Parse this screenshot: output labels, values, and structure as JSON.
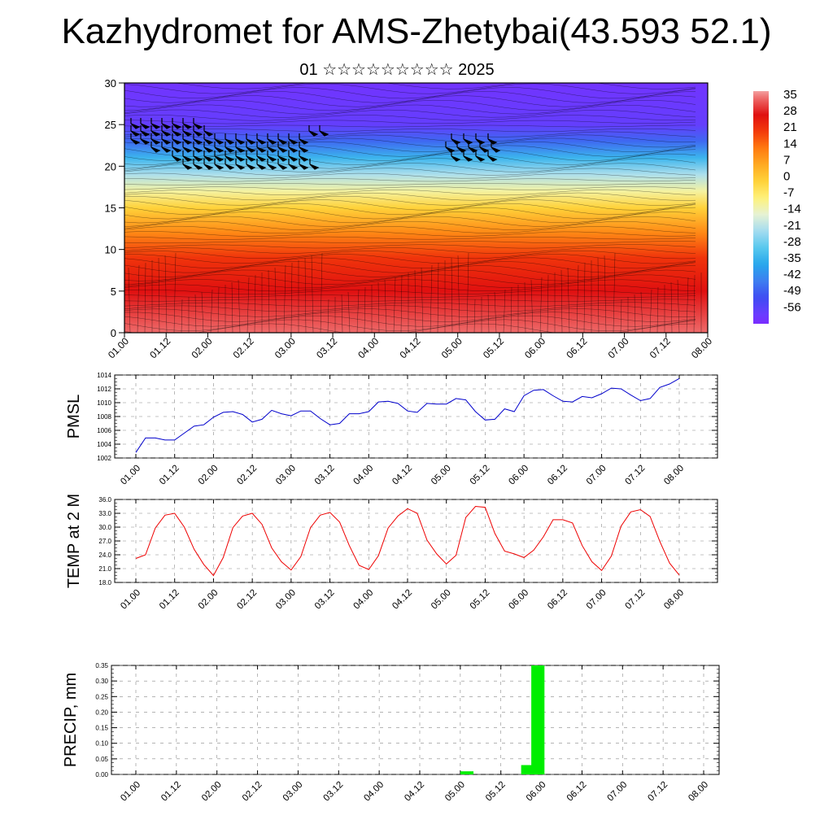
{
  "title": "Kazhydromet for AMS-Zhetybai(43.593 52.1)",
  "subtitle": "01 ☆☆☆☆☆☆☆☆☆ 2025",
  "time_ticks": [
    "01.00",
    "01.12",
    "02.00",
    "02.12",
    "03.00",
    "03.12",
    "04.00",
    "04.12",
    "05.00",
    "05.12",
    "06.00",
    "06.12",
    "07.00",
    "07.12",
    "08.00"
  ],
  "chart_data": [
    {
      "type": "heatmap",
      "description_type": "height-time cross section of temperature with wind barbs",
      "ylim": [
        0,
        30
      ],
      "yticks": [
        0,
        5,
        10,
        15,
        20,
        25,
        30
      ],
      "colorbar": {
        "labels": [
          "35",
          "28",
          "21",
          "14",
          "7",
          "0",
          "-7",
          "-14",
          "-21",
          "-28",
          "-35",
          "-42",
          "-49",
          "-56"
        ],
        "range": [
          -60,
          38
        ]
      },
      "temperature_profile": [
        {
          "y": 0,
          "t": 35
        },
        {
          "y": 5,
          "t": 28
        },
        {
          "y": 9,
          "t": 22
        },
        {
          "y": 12,
          "t": 12
        },
        {
          "y": 15,
          "t": 0
        },
        {
          "y": 17,
          "t": -10
        },
        {
          "y": 19,
          "t": -20
        },
        {
          "y": 21,
          "t": -32
        },
        {
          "y": 23,
          "t": -45
        },
        {
          "y": 25,
          "t": -55
        },
        {
          "y": 30,
          "t": -58
        }
      ]
    },
    {
      "type": "line",
      "ylabel": "PMSL",
      "ylim": [
        1002,
        1014
      ],
      "yticks": [
        1002,
        1004,
        1006,
        1008,
        1010,
        1012,
        1014
      ],
      "color": "#0000cc",
      "x_hours": [
        0,
        3,
        6,
        9,
        12,
        15,
        18,
        21,
        24,
        27,
        30,
        33,
        36,
        39,
        42,
        45,
        48,
        51,
        54,
        57,
        60,
        63,
        66,
        69,
        72,
        75,
        78,
        81,
        84,
        87,
        90,
        93,
        96,
        99,
        102,
        105,
        108,
        111,
        114,
        117,
        120,
        123,
        126,
        129,
        132,
        135,
        138,
        141,
        144,
        147,
        150,
        153,
        156,
        159,
        162,
        165,
        168
      ],
      "values": [
        1002.8,
        1004.9,
        1004.9,
        1004.6,
        1004.6,
        1005.6,
        1006.6,
        1006.8,
        1007.9,
        1008.6,
        1008.7,
        1008.3,
        1007.2,
        1007.6,
        1008.9,
        1008.4,
        1008.1,
        1008.8,
        1008.8,
        1007.7,
        1006.8,
        1007.0,
        1008.4,
        1008.4,
        1008.7,
        1010.1,
        1010.2,
        1009.9,
        1008.8,
        1008.6,
        1009.9,
        1009.8,
        1009.8,
        1010.6,
        1010.4,
        1008.7,
        1007.5,
        1007.6,
        1009.1,
        1008.7,
        1011.0,
        1011.8,
        1011.9,
        1011.0,
        1010.2,
        1010.1,
        1010.9,
        1010.7,
        1011.3,
        1012.1,
        1012.0,
        1011.1,
        1010.3,
        1010.6,
        1012.2,
        1012.7,
        1013.5
      ]
    },
    {
      "type": "line",
      "ylabel": "TEMP at 2 M",
      "ylim": [
        18,
        36
      ],
      "yticks": [
        "18.0",
        "21.0",
        "24.0",
        "27.0",
        "30.0",
        "33.0",
        "36.0"
      ],
      "color": "#ee0000",
      "x_hours": [
        0,
        3,
        6,
        9,
        12,
        15,
        18,
        21,
        24,
        27,
        30,
        33,
        36,
        39,
        42,
        45,
        48,
        51,
        54,
        57,
        60,
        63,
        66,
        69,
        72,
        75,
        78,
        81,
        84,
        87,
        90,
        93,
        96,
        99,
        102,
        105,
        108,
        111,
        114,
        117,
        120,
        123,
        126,
        129,
        132,
        135,
        138,
        141,
        144,
        147,
        150,
        153,
        156,
        159,
        162,
        165,
        168
      ],
      "values": [
        23.2,
        24.0,
        29.8,
        32.6,
        33.0,
        30.0,
        25.2,
        21.9,
        19.5,
        23.4,
        29.9,
        32.4,
        33.0,
        30.6,
        25.5,
        22.5,
        20.7,
        23.6,
        29.9,
        32.6,
        33.2,
        31.1,
        26.0,
        21.7,
        20.8,
        23.8,
        29.8,
        32.4,
        34.0,
        33.0,
        27.2,
        24.2,
        22.0,
        23.9,
        32.1,
        34.5,
        34.3,
        28.6,
        24.8,
        24.2,
        23.4,
        25.0,
        27.9,
        31.6,
        31.6,
        30.9,
        26.0,
        22.5,
        20.6,
        23.7,
        30.2,
        33.3,
        33.8,
        32.3,
        26.9,
        22.2,
        19.6
      ]
    },
    {
      "type": "bar",
      "ylabel": "PRECIP, mm",
      "ylim": [
        0,
        0.35
      ],
      "yticks": [
        "0.00",
        "0.05",
        "0.10",
        "0.15",
        "0.20",
        "0.25",
        "0.30",
        "0.35"
      ],
      "color": "#00ee00",
      "bars": [
        {
          "x_hours": 99,
          "value": 0.01
        },
        {
          "x_hours": 117,
          "value": 0.03
        },
        {
          "x_hours": 120,
          "value": 0.35
        }
      ]
    }
  ]
}
